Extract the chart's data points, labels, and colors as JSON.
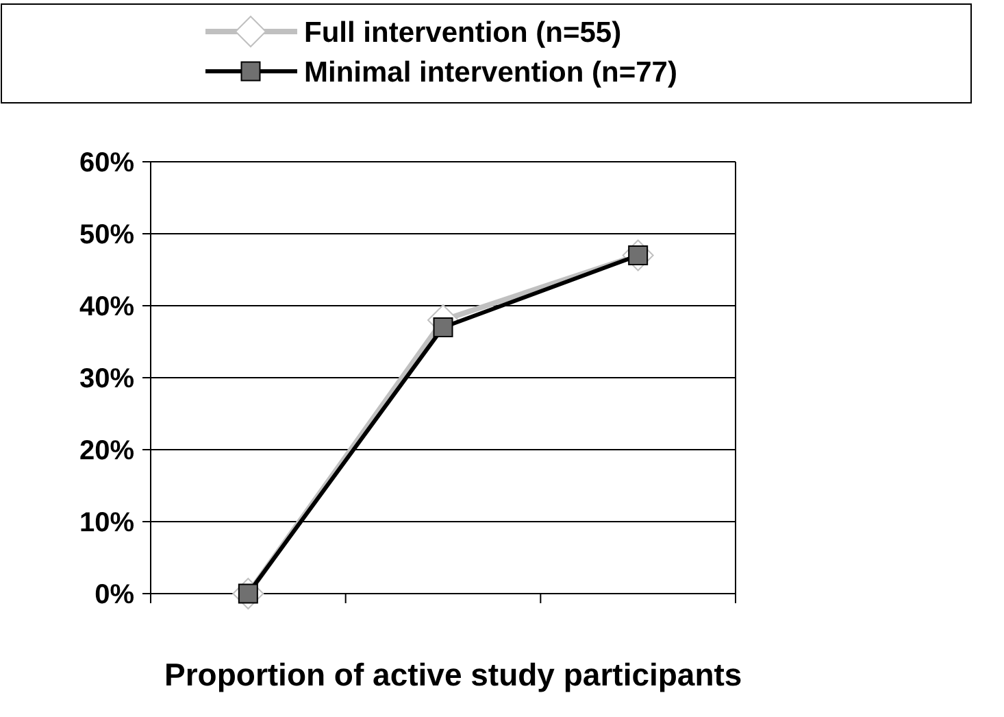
{
  "chart_data": {
    "type": "line",
    "title": "Proportion of active study participants",
    "categories": [
      null,
      null,
      null
    ],
    "series": [
      {
        "name": "Full intervention (n=55)",
        "color": "#c0c0c0",
        "marker": "diamond",
        "values": [
          0,
          0.38,
          0.47
        ]
      },
      {
        "name": "Minimal intervention (n=77)",
        "color": "#000000",
        "marker": "square",
        "values": [
          0,
          0.37,
          0.47
        ]
      }
    ],
    "ylim": [
      0,
      0.6
    ],
    "yticks": [
      {
        "value": 0,
        "label": "0%"
      },
      {
        "value": 0.1,
        "label": "10%"
      },
      {
        "value": 0.2,
        "label": "20%"
      },
      {
        "value": 0.3,
        "label": "30%"
      },
      {
        "value": 0.4,
        "label": "40%"
      },
      {
        "value": 0.5,
        "label": "50%"
      },
      {
        "value": 0.6,
        "label": "60%"
      }
    ],
    "grid": "y",
    "legend": "top",
    "line_style": "solid"
  }
}
